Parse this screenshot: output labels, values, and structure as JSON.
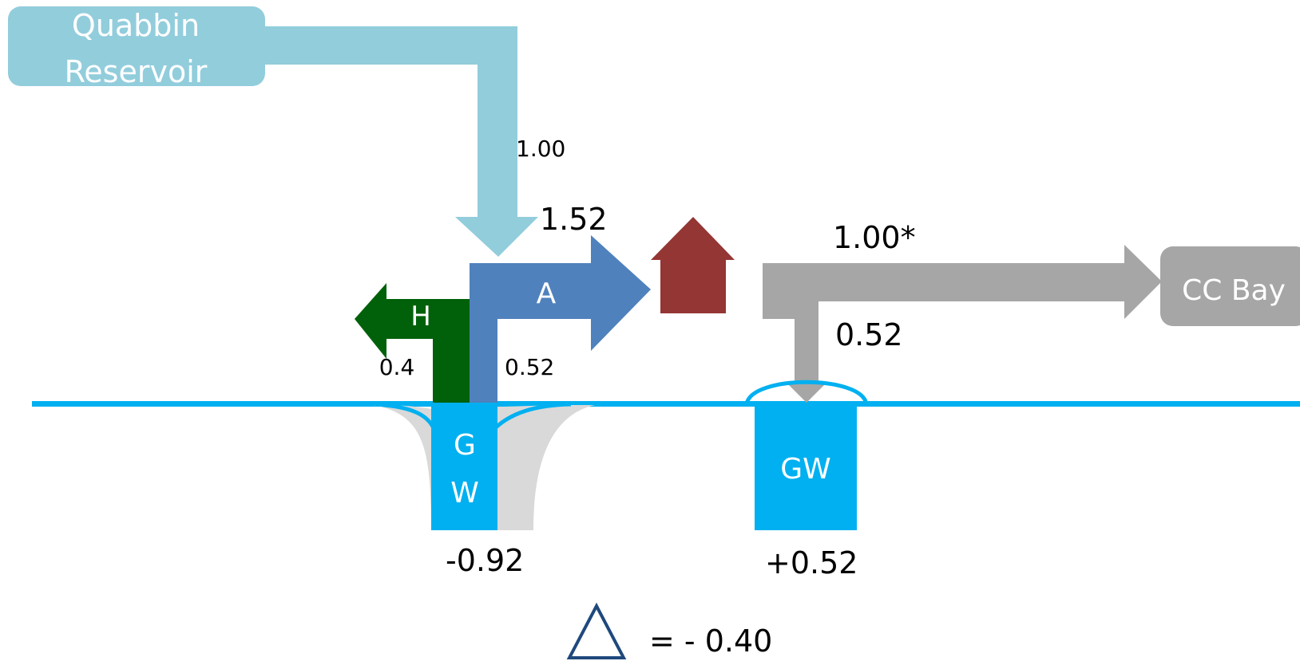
{
  "source": {
    "label_line1": "Quabbin",
    "label_line2": "Reservoir"
  },
  "destination": {
    "label": "CC Bay"
  },
  "flows": {
    "supply_value": "1.00",
    "a_total_value": "1.52",
    "a_label": "A",
    "h_label": "H",
    "h_value": "0.4",
    "a_gw_value": "0.52",
    "outflow_value": "1.00*",
    "recharge_value": "0.52"
  },
  "groundwater": {
    "left_label_line1": "G",
    "left_label_line2": "W",
    "left_change": "-0.92",
    "right_label": "GW",
    "right_change": "+0.52"
  },
  "summary": {
    "delta_text": "= - 0.40"
  },
  "colors": {
    "quabbin": "#92CDDC",
    "a_flow": "#4F81BD",
    "h_flow": "#00610A",
    "house": "#943634",
    "outflow": "#A6A6A6",
    "groundwater": "#00B0F0",
    "water_table": "#00B0F0",
    "shadow": "#D9D9D9",
    "delta_outline": "#1F497D"
  },
  "icons": {
    "house": "house-icon",
    "delta": "delta-triangle-icon"
  }
}
